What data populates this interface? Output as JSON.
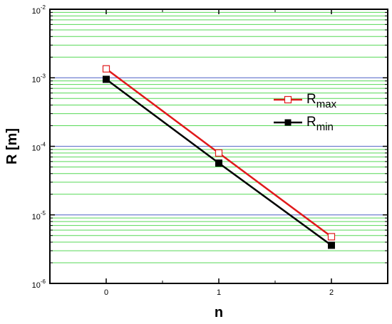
{
  "chart_data": {
    "type": "line",
    "xlabel": "n",
    "ylabel": "R [m]",
    "yscale": "log",
    "xlim": [
      -0.5,
      2.5
    ],
    "ylim": [
      1e-06,
      0.01
    ],
    "x_ticks": [
      0,
      1,
      2
    ],
    "y_ticks": [
      {
        "value": 1e-06,
        "base": "10",
        "exp": "-6"
      },
      {
        "value": 1e-05,
        "base": "10",
        "exp": "-5"
      },
      {
        "value": 0.0001,
        "base": "10",
        "exp": "-4"
      },
      {
        "value": 0.001,
        "base": "10",
        "exp": "-3"
      },
      {
        "value": 0.01,
        "base": "10",
        "exp": "-2"
      }
    ],
    "grid": true,
    "legend_position": "right",
    "series": [
      {
        "name": "R_max",
        "name_main": "R",
        "name_sub": "max",
        "color": "#e0191b",
        "marker": "open-square",
        "x": [
          0,
          1,
          2
        ],
        "y": [
          0.00135,
          8e-05,
          4.8e-06
        ]
      },
      {
        "name": "R_min",
        "name_main": "R",
        "name_sub": "min",
        "color": "#000000",
        "marker": "filled-square",
        "x": [
          0,
          1,
          2
        ],
        "y": [
          0.00095,
          5.7e-05,
          3.6e-06
        ]
      }
    ],
    "colors": {
      "major_grid": "#6f7fd0",
      "minor_grid": "#57d957",
      "frame": "#000000"
    }
  }
}
